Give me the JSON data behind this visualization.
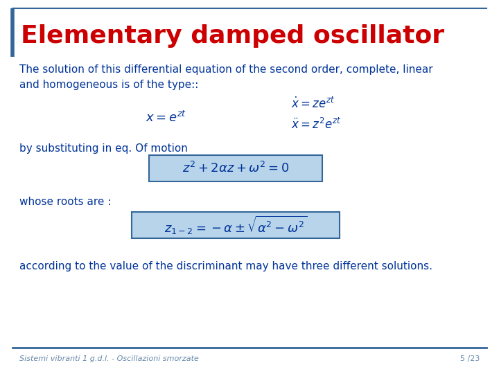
{
  "title": "Elementary damped oscillator",
  "title_color": "#cc0000",
  "title_fontsize": 26,
  "body_color": "#003399",
  "body_fontsize": 11,
  "border_color": "#336699",
  "bg_color": "#ffffff",
  "footer_left": "Sistemi vibranti 1 g.d.l. - Oscillazioni smorzate",
  "footer_right": "5 /23",
  "footer_fontsize": 8,
  "text1": "The solution of this differential equation of the second order, complete, linear",
  "text2": "and homogeneous is of the type::",
  "text3": "by substituting in eq. Of motion",
  "text4": "whose roots are :",
  "text5": "according to the value of the discriminant may have three different solutions.",
  "eq_x": "$x = e^{zt}$",
  "eq_deriv1": "$\\dot{x} = ze^{zt}$",
  "eq_deriv2": "$\\ddot{x} = z^2e^{zt}$",
  "eq_box1": "$z^2 + 2\\alpha z + \\omega^2 = 0$",
  "eq_box2": "$z_{1-2} = -\\alpha \\pm \\sqrt{\\alpha^2 - \\omega^2}$",
  "box_facecolor": "#b8d4ea",
  "box_edgecolor": "#336699",
  "title_bar_color": "#336699",
  "top_line_color": "#336699",
  "bottom_line_color": "#336699"
}
